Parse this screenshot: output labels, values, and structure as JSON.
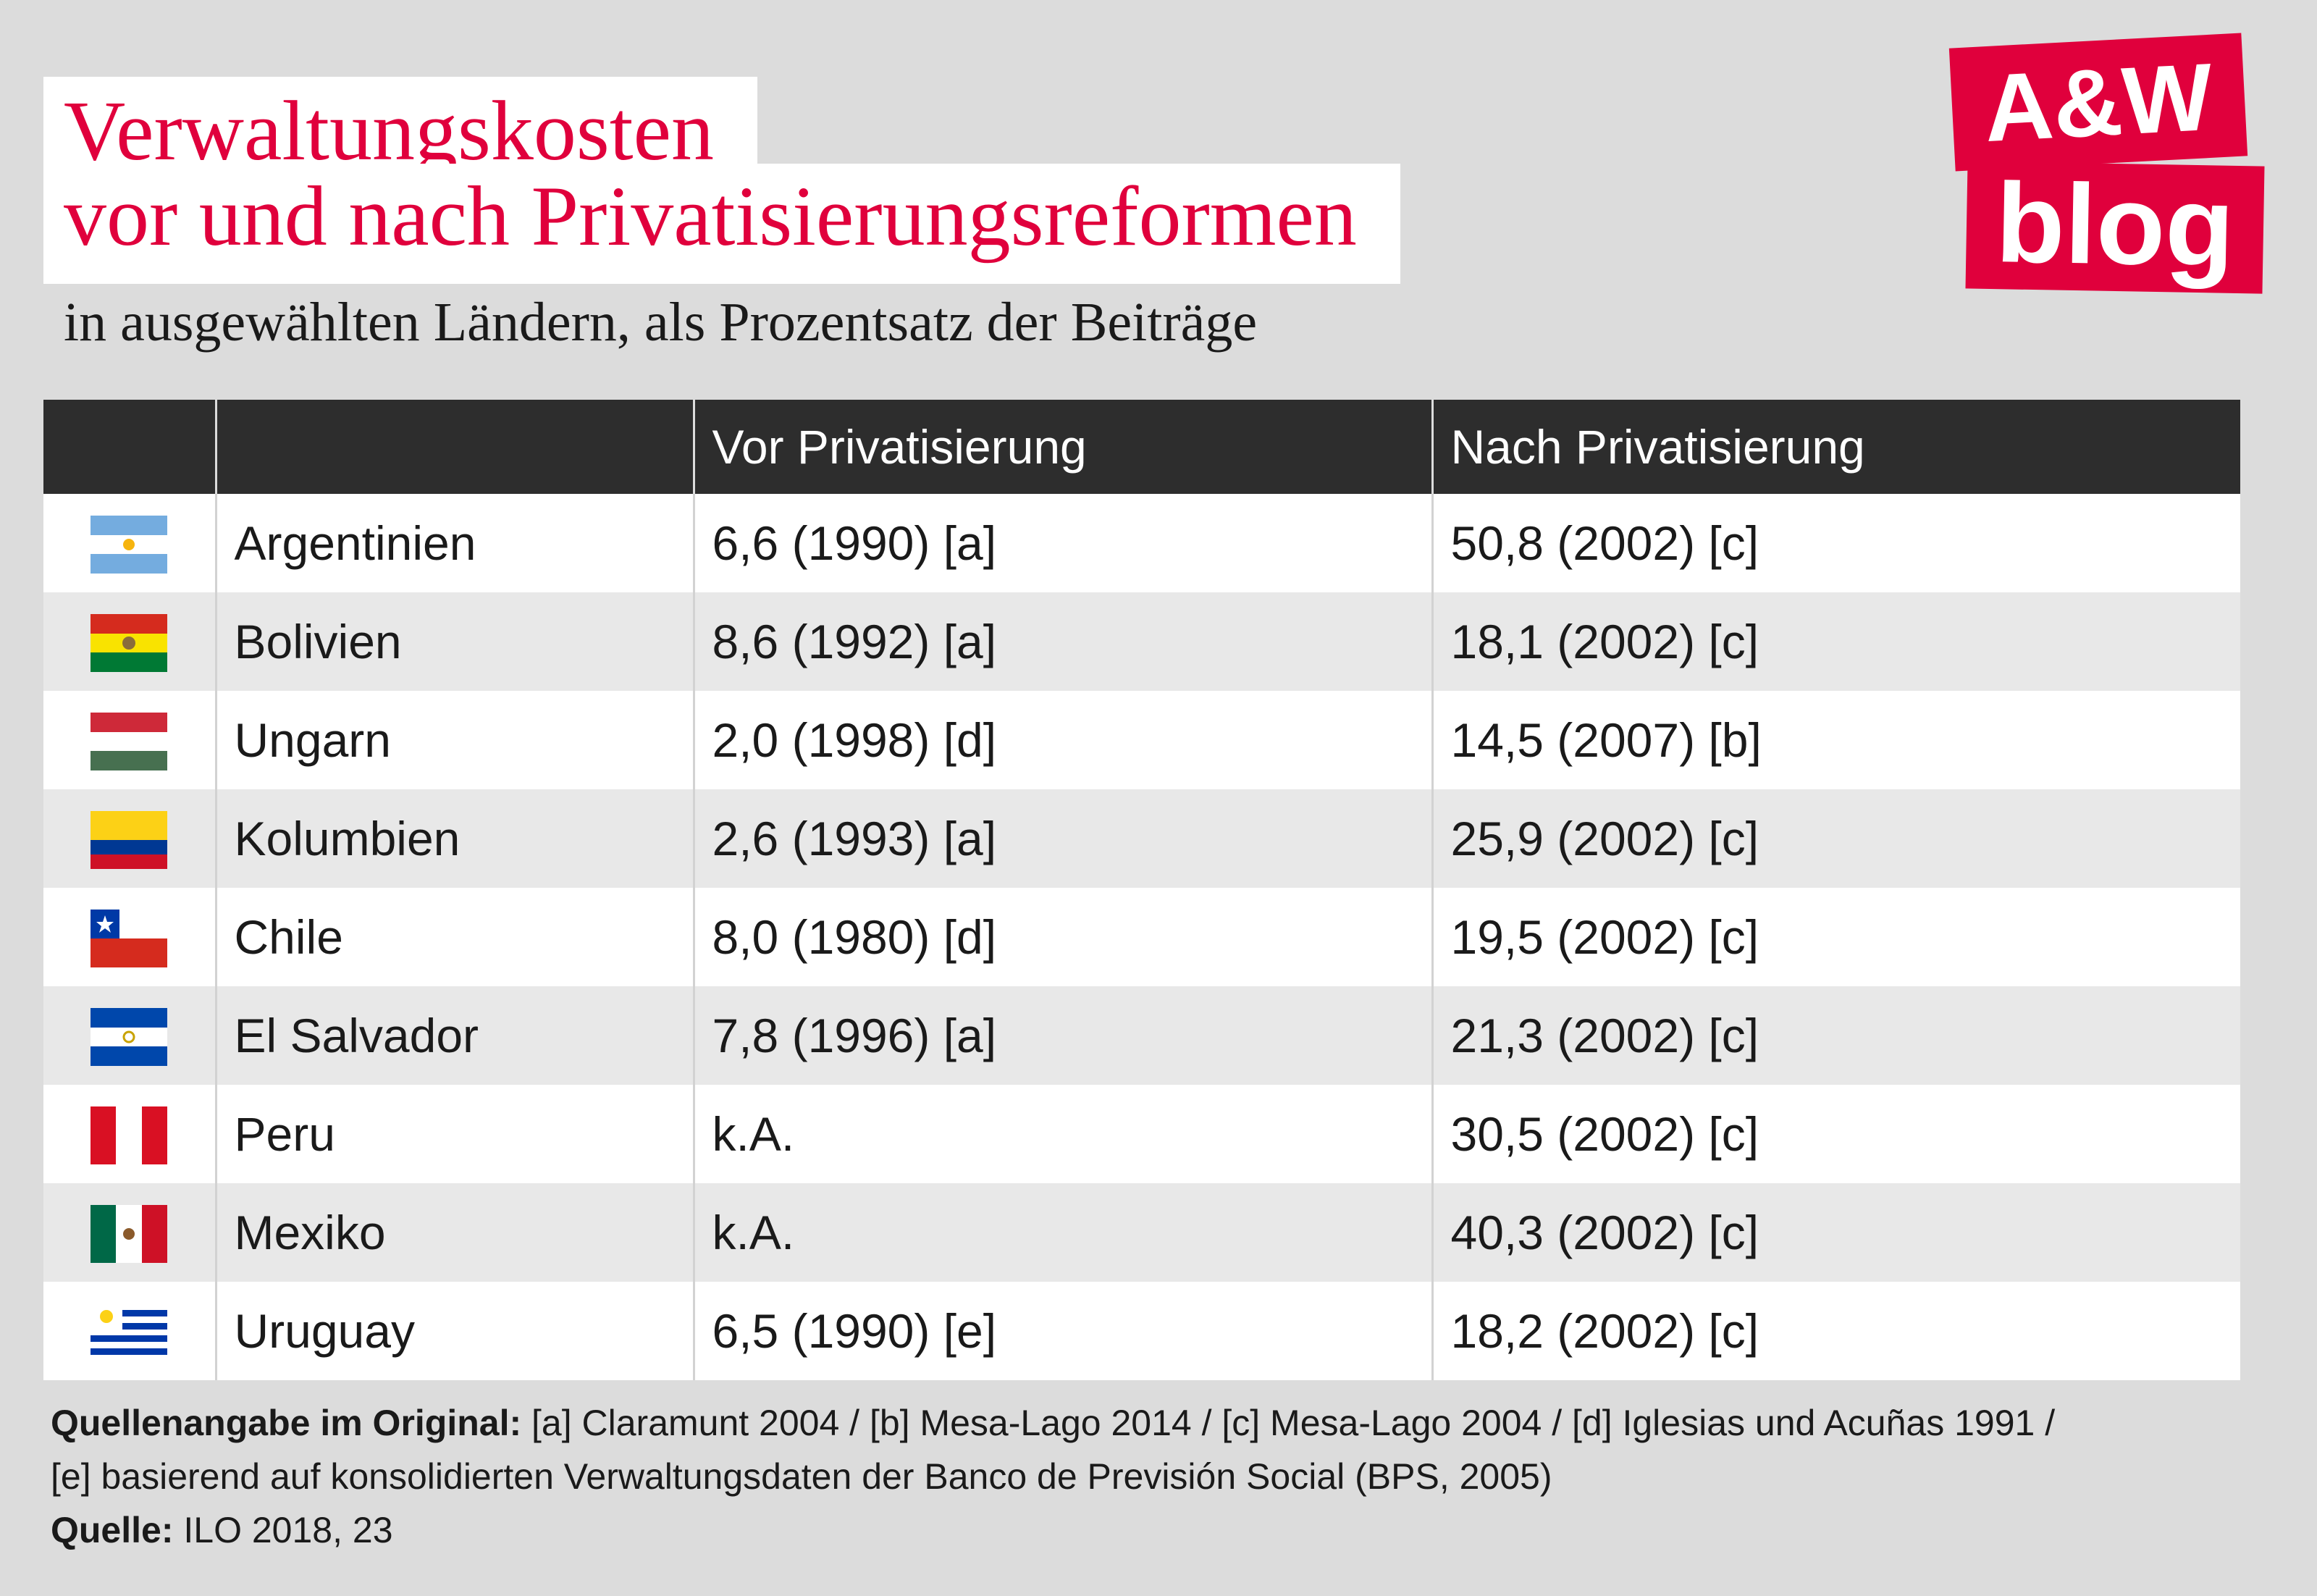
{
  "chart_data": {
    "type": "table",
    "title": "Verwaltungskosten vor und nach Privatisierungsreformen",
    "title_lines": [
      "Verwaltungskosten",
      "vor und nach Privatisierungsreformen"
    ],
    "subtitle": "in ausgewählten Ländern, als Prozentsatz der Beiträge",
    "columns": [
      "",
      "",
      "Vor Privatisierung",
      "Nach Privatisierung"
    ],
    "rows": [
      {
        "country": "Argentinien",
        "flag": "argentina-flag-icon",
        "before": "6,6 (1990) [a]",
        "after": "50,8 (2002) [c]"
      },
      {
        "country": "Bolivien",
        "flag": "bolivia-flag-icon",
        "before": "8,6 (1992) [a]",
        "after": "18,1 (2002) [c]"
      },
      {
        "country": "Ungarn",
        "flag": "hungary-flag-icon",
        "before": "2,0 (1998) [d]",
        "after": "14,5 (2007) [b]"
      },
      {
        "country": "Kolumbien",
        "flag": "colombia-flag-icon",
        "before": "2,6 (1993) [a]",
        "after": "25,9 (2002) [c]"
      },
      {
        "country": "Chile",
        "flag": "chile-flag-icon",
        "before": "8,0 (1980) [d]",
        "after": "19,5 (2002) [c]"
      },
      {
        "country": "El Salvador",
        "flag": "el-salvador-flag-icon",
        "before": "7,8 (1996) [a]",
        "after": "21,3 (2002) [c]"
      },
      {
        "country": "Peru",
        "flag": "peru-flag-icon",
        "before": "k.A.",
        "after": "30,5 (2002) [c]"
      },
      {
        "country": "Mexiko",
        "flag": "mexico-flag-icon",
        "before": "k.A.",
        "after": "40,3 (2002) [c]"
      },
      {
        "country": "Uruguay",
        "flag": "uruguay-flag-icon",
        "before": "6,5 (1990) [e]",
        "after": "18,2 (2002) [c]"
      }
    ]
  },
  "logo": {
    "line1": "A&W",
    "line2": "blog",
    "color": "#e0003c"
  },
  "footnote": {
    "sources_label": "Quellenangabe im Original:",
    "sources_line1": "[a] Claramunt 2004 / [b] Mesa-Lago 2014 / [c] Mesa-Lago 2004 / [d] Iglesias und Acuñas 1991 /",
    "sources_line2": "[e] basierend auf konsolidierten Verwaltungsdaten der Banco de Previsión Social (BPS, 2005)",
    "source_label": "Quelle:",
    "source_text": "ILO 2018, 23"
  },
  "colors": {
    "title": "#e0003c",
    "header_bg": "#2d2d2d",
    "background": "#dcdcdc"
  }
}
